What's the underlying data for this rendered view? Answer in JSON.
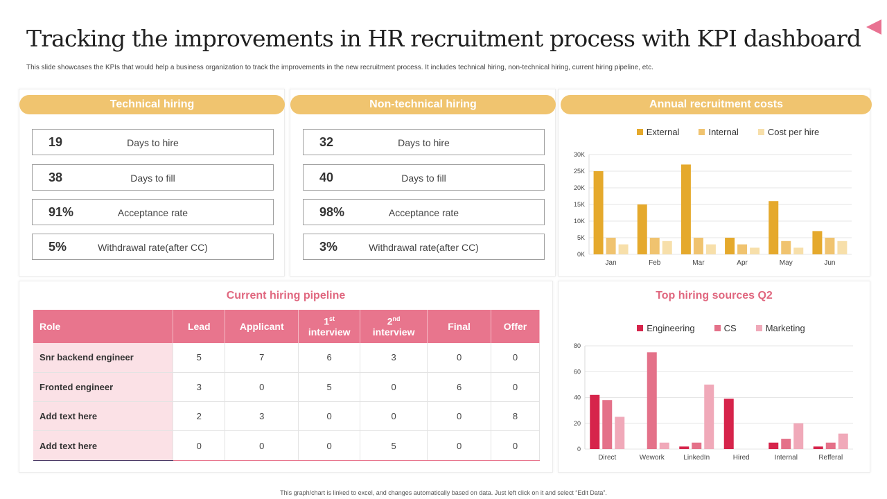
{
  "header": {
    "title": "Tracking the improvements in HR recruitment process with KPI dashboard",
    "subtitle": "This slide showcases the KPIs that would help a business organization to track the improvements in the new recruitment process. It includes technical hiring, non-technical hiring, current hiring pipeline, etc."
  },
  "technical": {
    "title": "Technical hiring",
    "kpis": [
      {
        "value": "19",
        "label": "Days to hire"
      },
      {
        "value": "38",
        "label": "Days to fill"
      },
      {
        "value": "91%",
        "label": "Acceptance rate"
      },
      {
        "value": "5%",
        "label": "Withdrawal rate(after CC)"
      }
    ]
  },
  "nontechnical": {
    "title": "Non-technical hiring",
    "kpis": [
      {
        "value": "32",
        "label": "Days to hire"
      },
      {
        "value": "40",
        "label": "Days to fill"
      },
      {
        "value": "98%",
        "label": "Acceptance rate"
      },
      {
        "value": "3%",
        "label": "Withdrawal rate(after CC)"
      }
    ]
  },
  "pipeline": {
    "title": "Current hiring pipeline",
    "headers": {
      "role": "Role",
      "lead": "Lead",
      "applicant": "Applicant",
      "i1_num": "1",
      "i1_sup": "st",
      "i1_word": "interview",
      "i2_num": "2",
      "i2_sup": "nd",
      "i2_word": "interview",
      "final": "Final",
      "offer": "Offer"
    },
    "rows": [
      {
        "role": "Snr backend engineer",
        "values": [
          "5",
          "7",
          "6",
          "3",
          "0",
          "0"
        ]
      },
      {
        "role": "Fronted engineer",
        "values": [
          "3",
          "0",
          "5",
          "0",
          "6",
          "0"
        ]
      },
      {
        "role": "Add text here",
        "values": [
          "2",
          "3",
          "0",
          "0",
          "0",
          "8"
        ]
      },
      {
        "role": "Add text here",
        "values": [
          "0",
          "0",
          "0",
          "5",
          "0",
          "0"
        ]
      }
    ]
  },
  "colors": {
    "pill": "#f0c46f",
    "external": "#e5a92c",
    "internal": "#f0c36f",
    "cost_per_hire": "#f7dfaa",
    "engineering": "#d6244b",
    "cs": "#e47189",
    "marketing": "#f0a9b9"
  },
  "chart_data": [
    {
      "type": "bar",
      "title": "Annual recruitment costs",
      "categories": [
        "Jan",
        "Feb",
        "Mar",
        "Apr",
        "May",
        "Jun"
      ],
      "series": [
        {
          "name": "External",
          "values": [
            25000,
            15000,
            27000,
            5000,
            16000,
            7000
          ]
        },
        {
          "name": "Internal",
          "values": [
            5000,
            5000,
            5000,
            3000,
            4000,
            5000
          ]
        },
        {
          "name": "Cost per hire",
          "values": [
            3000,
            4000,
            3000,
            2000,
            2000,
            4000
          ]
        }
      ],
      "ylim": [
        0,
        30000
      ],
      "yticks": [
        0,
        5000,
        10000,
        15000,
        20000,
        25000,
        30000
      ],
      "ytick_labels": [
        "0K",
        "5K",
        "10K",
        "15K",
        "20K",
        "25K",
        "30K"
      ],
      "legend": "top"
    },
    {
      "type": "bar",
      "title": "Top hiring sources Q2",
      "categories": [
        "Direct",
        "Wework",
        "LinkedIn",
        "Hired",
        "Internal",
        "Refferal"
      ],
      "series": [
        {
          "name": "Engineering",
          "values": [
            42,
            0,
            2,
            39,
            5,
            2
          ]
        },
        {
          "name": "CS",
          "values": [
            38,
            75,
            5,
            0,
            8,
            5
          ]
        },
        {
          "name": "Marketing",
          "values": [
            25,
            5,
            50,
            0,
            20,
            12
          ]
        }
      ],
      "ylim": [
        0,
        80
      ],
      "yticks": [
        0,
        20,
        40,
        60,
        80
      ],
      "ytick_labels": [
        "0",
        "20",
        "40",
        "60",
        "80"
      ],
      "legend": "top"
    }
  ],
  "footer": "This graph/chart is linked to excel, and changes automatically based on data. Just left click on it and select “Edit Data”."
}
